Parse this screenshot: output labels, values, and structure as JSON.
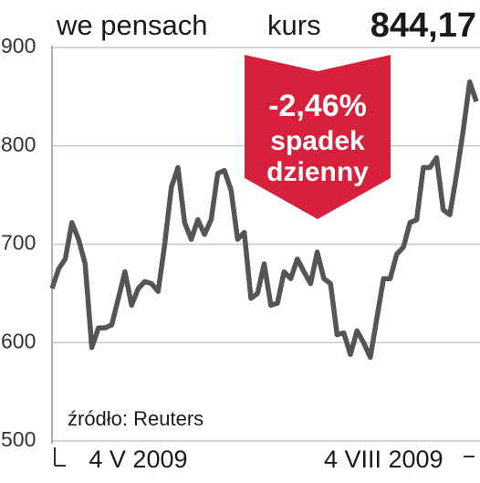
{
  "chart_data": {
    "type": "line",
    "title": "we pensach",
    "price_label": "kurs",
    "price": "844,17",
    "annotation": [
      "-2,46%",
      "spadek",
      "dzienny"
    ],
    "source": "źródło: Reuters",
    "categories": [
      null,
      null,
      null,
      null,
      null,
      null,
      null,
      null,
      null,
      null,
      null,
      null,
      null,
      "4 V 2009",
      null,
      null,
      null,
      null,
      null,
      null,
      null,
      null,
      null,
      null,
      null,
      null,
      null,
      null,
      null,
      null,
      null,
      null,
      null,
      null,
      null,
      null,
      null,
      null,
      null,
      null,
      null,
      null,
      null,
      null,
      null,
      null,
      null,
      null,
      null,
      null,
      "4 VIII 2009",
      null,
      null,
      null,
      null,
      null,
      null,
      null,
      null,
      null,
      null,
      null,
      null,
      null,
      null
    ],
    "series": [
      {
        "color": "#555555",
        "values": [
          655,
          675,
          685,
          722,
          705,
          680,
          595,
          615,
          615,
          618,
          645,
          672,
          638,
          655,
          662,
          660,
          652,
          700,
          758,
          778,
          722,
          705,
          725,
          710,
          725,
          772,
          775,
          755,
          705,
          712,
          645,
          650,
          680,
          638,
          640,
          672,
          665,
          685,
          672,
          660,
          692,
          665,
          660,
          608,
          610,
          588,
          612,
          600,
          585,
          625,
          665,
          665,
          690,
          697,
          722,
          725,
          778,
          778,
          788,
          735,
          730,
          770,
          815,
          865,
          845
        ]
      }
    ],
    "ylim": [
      500,
      900
    ],
    "yticks": [
      500,
      600,
      700,
      800,
      900
    ],
    "grid": true,
    "annotation_color": "#d6203c"
  }
}
